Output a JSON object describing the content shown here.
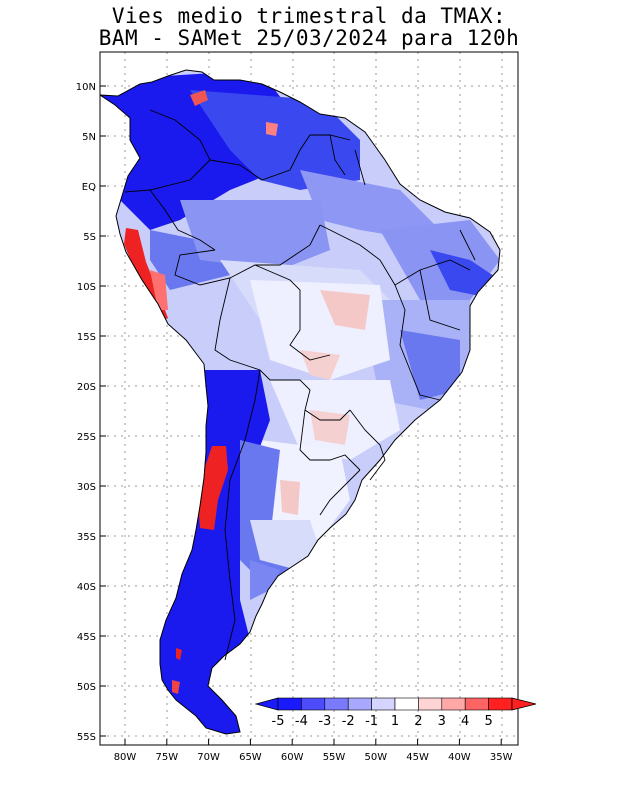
{
  "title": {
    "line1": "Vies medio trimestral da TMAX:",
    "line2": "BAM - SAMet 25/03/2024  para 120h"
  },
  "axes": {
    "lat_labels": [
      "10N",
      "5N",
      "EQ",
      "5S",
      "10S",
      "15S",
      "20S",
      "25S",
      "30S",
      "35S",
      "40S",
      "45S",
      "50S",
      "55S"
    ],
    "lon_labels": [
      "80W",
      "75W",
      "70W",
      "65W",
      "60W",
      "55W",
      "50W",
      "45W",
      "40W",
      "35W"
    ]
  },
  "colorbar": {
    "labels": [
      "-5",
      "-4",
      "-3",
      "-2",
      "-1",
      "1",
      "2",
      "3",
      "4",
      "5"
    ],
    "colors": [
      "#1a1aff",
      "#4d4dff",
      "#7a7aff",
      "#a8a8ff",
      "#d4d4ff",
      "#ffffff",
      "#ffd4d4",
      "#ffa8a8",
      "#ff6464",
      "#ff2020"
    ]
  },
  "map_colors": {
    "land_base": "#c8cdfa",
    "strong_negative": "#1a1aee",
    "moderate_negative": "#6a78f0",
    "light_negative": "#aab4f8",
    "near_zero": "#eef0ff",
    "light_positive": "#f5c8c8",
    "strong_positive": "#ee2222",
    "border": "#000000",
    "grid": "#999999"
  }
}
